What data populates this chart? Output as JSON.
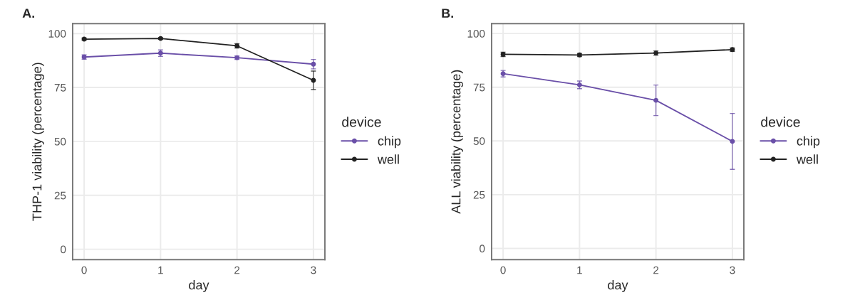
{
  "chart_data": [
    {
      "type": "line",
      "title": "A.",
      "xlabel": "day",
      "ylabel": "THP-1 viability (percentage)",
      "legend_title": "device",
      "legend": "right",
      "grid": true,
      "marker": "circle",
      "x": [
        0,
        1,
        2,
        3
      ],
      "xlim": [
        -0.15,
        3.15
      ],
      "xticks": [
        0,
        1,
        2,
        3
      ],
      "ylim": [
        -4.8,
        104.6
      ],
      "yticks": [
        0,
        25,
        50,
        75,
        100
      ],
      "series": [
        {
          "name": "chip",
          "color": "#6a4fa8",
          "values": [
            89.1,
            90.9,
            88.8,
            85.8
          ],
          "errors": [
            1.0,
            1.5,
            0.8,
            2.2
          ]
        },
        {
          "name": "well",
          "color": "#222222",
          "values": [
            97.4,
            97.7,
            94.3,
            78.3
          ],
          "errors": [
            0.5,
            0.4,
            1.0,
            4.3
          ]
        }
      ]
    },
    {
      "type": "line",
      "title": "B.",
      "xlabel": "day",
      "ylabel": "ALL viability (percentage)",
      "legend_title": "device",
      "legend": "right",
      "grid": true,
      "marker": "circle",
      "x": [
        0,
        1,
        2,
        3
      ],
      "xlim": [
        -0.15,
        3.15
      ],
      "xticks": [
        0,
        1,
        2,
        3
      ],
      "ylim": [
        -5.2,
        104.6
      ],
      "yticks": [
        0,
        25,
        50,
        75,
        100
      ],
      "series": [
        {
          "name": "chip",
          "color": "#6a4fa8",
          "values": [
            81.3,
            76.1,
            68.9,
            49.8
          ],
          "errors": [
            1.5,
            1.8,
            7.1,
            13.0
          ]
        },
        {
          "name": "well",
          "color": "#222222",
          "values": [
            90.3,
            90.0,
            90.9,
            92.5
          ],
          "errors": [
            1.0,
            0.7,
            1.0,
            0.8
          ]
        }
      ]
    }
  ]
}
